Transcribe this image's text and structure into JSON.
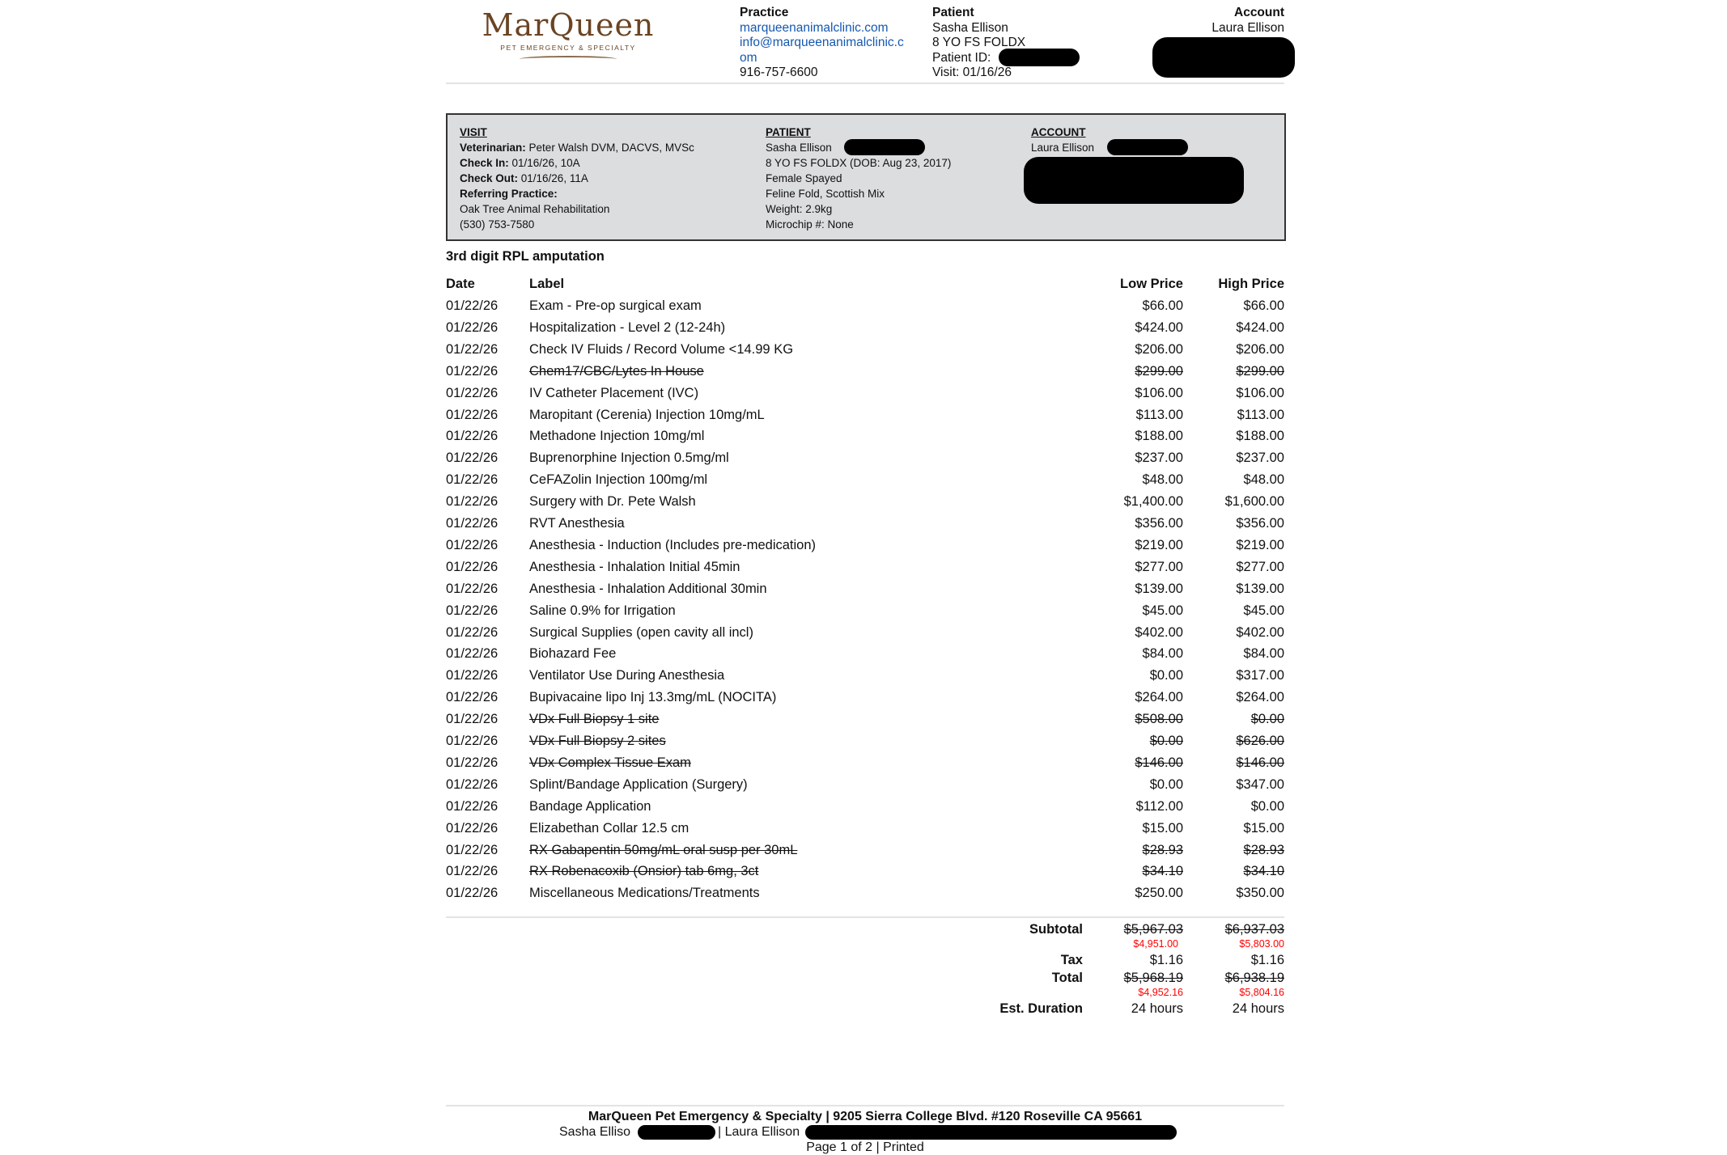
{
  "logo": {
    "brand": "MarQueen",
    "tagline": "PET EMERGENCY & SPECIALTY"
  },
  "header": {
    "practice": {
      "title": "Practice",
      "website": "marqueenanimalclinic.com",
      "email_line1": "info@marqueenanimalclinic.c",
      "email_line2": "om",
      "phone": "916-757-6600"
    },
    "patient": {
      "title": "Patient",
      "name": "Sasha Ellison",
      "desc": "8 YO FS FOLDX",
      "id_label": "Patient ID:",
      "visit": "Visit: 01/16/26"
    },
    "account": {
      "title": "Account",
      "name": "Laura Ellison"
    }
  },
  "visit_box": {
    "visit": {
      "title": "VISIT",
      "vet_label": "Veterinarian:",
      "vet": " Peter Walsh DVM, DACVS, MVSc",
      "checkin_label": "Check In:",
      "checkin": " 01/16/26, 10A",
      "checkout_label": "Check Out:",
      "checkout": " 01/16/26, 11A",
      "referring_label": "Referring Practice:",
      "referring_name": "Oak Tree Animal Rehabilitation",
      "referring_phone": "(530) 753-7580"
    },
    "patient": {
      "title": "PATIENT",
      "name": "Sasha Ellison",
      "age": "8 YO FS FOLDX (DOB: Aug 23, 2017)",
      "sex": "Female Spayed",
      "breed": "Feline Fold, Scottish Mix",
      "weight": "Weight: 2.9kg",
      "microchip": "Microchip #: None"
    },
    "account": {
      "title": "ACCOUNT",
      "name": "Laura Ellison"
    }
  },
  "estimate_title": "3rd digit RPL amputation",
  "columns": {
    "date": "Date",
    "label": "Label",
    "low": "Low Price",
    "high": "High Price"
  },
  "items": [
    {
      "date": "01/22/26",
      "label": "Exam - Pre-op surgical exam",
      "low": "$66.00",
      "high": "$66.00",
      "struck": false
    },
    {
      "date": "01/22/26",
      "label": "Hospitalization - Level 2 (12-24h)",
      "low": "$424.00",
      "high": "$424.00",
      "struck": false
    },
    {
      "date": "01/22/26",
      "label": "Check IV Fluids / Record Volume <14.99 KG",
      "low": "$206.00",
      "high": "$206.00",
      "struck": false
    },
    {
      "date": "01/22/26",
      "label": "Chem17/CBC/Lytes In House",
      "low": "$299.00",
      "high": "$299.00",
      "struck": true
    },
    {
      "date": "01/22/26",
      "label": "IV Catheter Placement (IVC)",
      "low": "$106.00",
      "high": "$106.00",
      "struck": false
    },
    {
      "date": "01/22/26",
      "label": "Maropitant (Cerenia) Injection 10mg/mL",
      "low": "$113.00",
      "high": "$113.00",
      "struck": false
    },
    {
      "date": "01/22/26",
      "label": "Methadone Injection 10mg/ml",
      "low": "$188.00",
      "high": "$188.00",
      "struck": false
    },
    {
      "date": "01/22/26",
      "label": "Buprenorphine Injection 0.5mg/ml",
      "low": "$237.00",
      "high": "$237.00",
      "struck": false
    },
    {
      "date": "01/22/26",
      "label": "CeFAZolin Injection 100mg/ml",
      "low": "$48.00",
      "high": "$48.00",
      "struck": false
    },
    {
      "date": "01/22/26",
      "label": "Surgery with Dr. Pete Walsh",
      "low": "$1,400.00",
      "high": "$1,600.00",
      "struck": false
    },
    {
      "date": "01/22/26",
      "label": "RVT Anesthesia",
      "low": "$356.00",
      "high": "$356.00",
      "struck": false
    },
    {
      "date": "01/22/26",
      "label": "Anesthesia - Induction (Includes pre-medication)",
      "low": "$219.00",
      "high": "$219.00",
      "struck": false
    },
    {
      "date": "01/22/26",
      "label": "Anesthesia - Inhalation Initial 45min",
      "low": "$277.00",
      "high": "$277.00",
      "struck": false
    },
    {
      "date": "01/22/26",
      "label": "Anesthesia - Inhalation Additional 30min",
      "low": "$139.00",
      "high": "$139.00",
      "struck": false
    },
    {
      "date": "01/22/26",
      "label": "Saline 0.9% for Irrigation",
      "low": "$45.00",
      "high": "$45.00",
      "struck": false
    },
    {
      "date": "01/22/26",
      "label": "Surgical Supplies (open cavity all incl)",
      "low": "$402.00",
      "high": "$402.00",
      "struck": false
    },
    {
      "date": "01/22/26",
      "label": "Biohazard Fee",
      "low": "$84.00",
      "high": "$84.00",
      "struck": false
    },
    {
      "date": "01/22/26",
      "label": "Ventilator Use During Anesthesia",
      "low": "$0.00",
      "high": "$317.00",
      "struck": false
    },
    {
      "date": "01/22/26",
      "label": "Bupivacaine lipo Inj 13.3mg/mL (NOCITA)",
      "low": "$264.00",
      "high": "$264.00",
      "struck": false
    },
    {
      "date": "01/22/26",
      "label": "VDx Full Biopsy 1 site",
      "low": "$508.00",
      "high": "$0.00",
      "struck": true
    },
    {
      "date": "01/22/26",
      "label": "VDx Full Biopsy 2 sites",
      "low": "$0.00",
      "high": "$626.00",
      "struck": true
    },
    {
      "date": "01/22/26",
      "label": "VDx Complex Tissue Exam",
      "low": "$146.00",
      "high": "$146.00",
      "struck": true
    },
    {
      "date": "01/22/26",
      "label": "Splint/Bandage Application (Surgery)",
      "low": "$0.00",
      "high": "$347.00",
      "struck": false
    },
    {
      "date": "01/22/26",
      "label": "Bandage Application",
      "low": "$112.00",
      "high": "$0.00",
      "struck": false
    },
    {
      "date": "01/22/26",
      "label": "Elizabethan Collar 12.5 cm",
      "low": "$15.00",
      "high": "$15.00",
      "struck": false
    },
    {
      "date": "01/22/26",
      "label": "RX Gabapentin 50mg/mL oral susp per 30mL",
      "low": "$28.93",
      "high": "$28.93",
      "struck": true
    },
    {
      "date": "01/22/26",
      "label": "RX Robenacoxib (Onsior) tab 6mg, 3ct",
      "low": "$34.10",
      "high": "$34.10",
      "struck": true
    },
    {
      "date": "01/22/26",
      "label": "Miscellaneous Medications/Treatments",
      "low": "$250.00",
      "high": "$350.00",
      "struck": false
    }
  ],
  "totals": {
    "subtotal": {
      "label": "Subtotal",
      "low": "$5,967.03",
      "high": "$6,937.03",
      "low_corrected": "$4,951.00",
      "high_corrected": "$5,803.00"
    },
    "tax": {
      "label": "Tax",
      "low": "$1.16",
      "high": "$1.16"
    },
    "total": {
      "label": "Total",
      "low": "$5,968.19",
      "high": "$6,938.19",
      "low_corrected": "$4,952.16",
      "high_corrected": "$5,804.16"
    },
    "duration": {
      "label": "Est. Duration",
      "low": "24 hours",
      "high": "24 hours"
    }
  },
  "colors": {
    "correction": "#ff0000",
    "link": "#1558b0",
    "brand": "#6b4423",
    "box_bg": "#dcdddf"
  },
  "footer": {
    "address": "MarQueen Pet Emergency & Specialty | 9205 Sierra College Blvd. #120 Roseville CA 95661",
    "patient": "Sasha Elliso",
    "account": "| Laura Ellison",
    "page": "Page 1 of 2 | Printed"
  }
}
